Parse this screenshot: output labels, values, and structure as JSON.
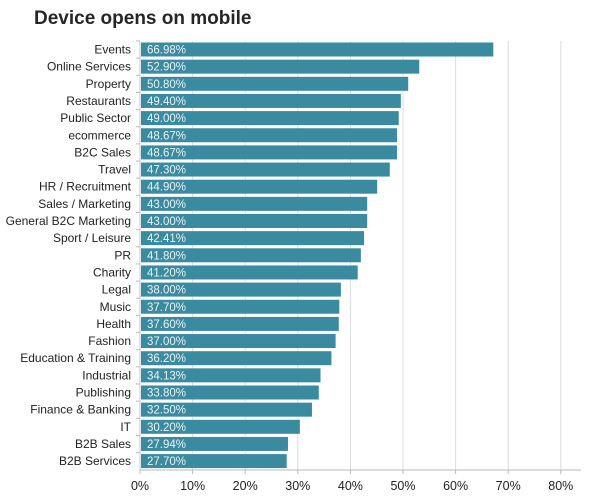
{
  "chart_data": {
    "type": "bar",
    "orientation": "horizontal",
    "title": "Device opens on mobile",
    "xlabel": "",
    "ylabel": "",
    "xlim": [
      0,
      84
    ],
    "grid": true,
    "bar_color": "#3a8ba0",
    "categories": [
      "Events",
      "Online Services",
      "Property",
      "Restaurants",
      "Public Sector",
      "ecommerce",
      "B2C Sales",
      "Travel",
      "HR / Recruitment",
      "Sales / Marketing",
      "General B2C Marketing",
      "Sport / Leisure",
      "PR",
      "Charity",
      "Legal",
      "Music",
      "Health",
      "Fashion",
      "Education & Training",
      "Industrial",
      "Publishing",
      "Finance & Banking",
      "IT",
      "B2B Sales",
      "B2B Services"
    ],
    "values": [
      66.98,
      52.9,
      50.8,
      49.4,
      49.0,
      48.67,
      48.67,
      47.3,
      44.9,
      43.0,
      43.0,
      42.41,
      41.8,
      41.2,
      38.0,
      37.7,
      37.6,
      37.0,
      36.2,
      34.13,
      33.8,
      32.5,
      30.2,
      27.94,
      27.7
    ],
    "value_labels": [
      "66.98%",
      "52.90%",
      "50.80%",
      "49.40%",
      "49.00%",
      "48.67%",
      "48.67%",
      "47.30%",
      "44.90%",
      "43.00%",
      "43.00%",
      "42.41%",
      "41.80%",
      "41.20%",
      "38.00%",
      "37.70%",
      "37.60%",
      "37.00%",
      "36.20%",
      "34.13%",
      "33.80%",
      "32.50%",
      "30.20%",
      "27.94%",
      "27.70%"
    ],
    "ticks": [
      0,
      10,
      20,
      30,
      40,
      50,
      60,
      70,
      80
    ],
    "tick_labels": [
      "0%",
      "10%",
      "20%",
      "30%",
      "40%",
      "50%",
      "60%",
      "70%",
      "80%"
    ]
  }
}
